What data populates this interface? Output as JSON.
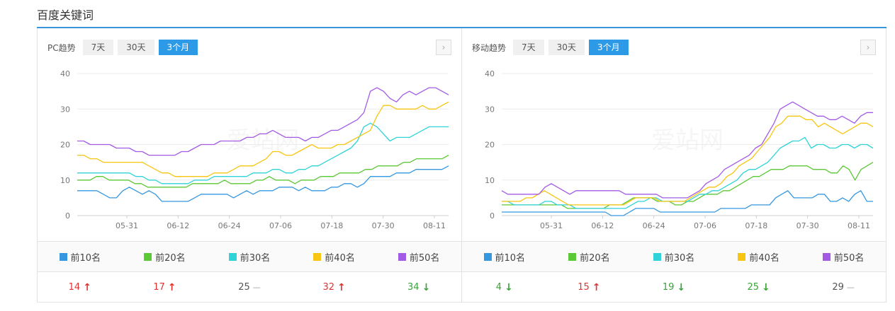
{
  "section_title": "百度关键词",
  "legend_colors": {
    "前10名": "#3597e0",
    "前20名": "#5bc836",
    "前30名": "#2fd3d8",
    "前40名": "#f8c511",
    "前50名": "#a35be6"
  },
  "panels": [
    {
      "id": "pc",
      "label": "PC趋势",
      "tabs": [
        "7天",
        "30天",
        "3个月"
      ],
      "active_tab": "3个月",
      "next_icon": "chevron-right-icon",
      "watermark": "爱站网",
      "legend": [
        "前10名",
        "前20名",
        "前30名",
        "前40名",
        "前50名"
      ],
      "deltas": [
        {
          "value": "14",
          "trend": "up",
          "symbol": "↑"
        },
        {
          "value": "17",
          "trend": "up",
          "symbol": "↑"
        },
        {
          "value": "25",
          "trend": "flat",
          "symbol": "—"
        },
        {
          "value": "32",
          "trend": "up",
          "symbol": "↑"
        },
        {
          "value": "34",
          "trend": "down",
          "symbol": "↓"
        }
      ]
    },
    {
      "id": "mobile",
      "label": "移动趋势",
      "tabs": [
        "7天",
        "30天",
        "3个月"
      ],
      "active_tab": "3个月",
      "next_icon": "chevron-right-icon",
      "watermark": "爱站网",
      "legend": [
        "前10名",
        "前20名",
        "前30名",
        "前40名",
        "前50名"
      ],
      "deltas": [
        {
          "value": "4",
          "trend": "down",
          "symbol": "↓"
        },
        {
          "value": "15",
          "trend": "up",
          "symbol": "↑"
        },
        {
          "value": "19",
          "trend": "down",
          "symbol": "↓"
        },
        {
          "value": "25",
          "trend": "down",
          "symbol": "↓"
        },
        {
          "value": "29",
          "trend": "flat",
          "symbol": "—"
        }
      ]
    }
  ],
  "chart_data": [
    {
      "type": "line",
      "x_ticks": [
        "05-31",
        "06-12",
        "06-24",
        "07-06",
        "07-18",
        "07-30",
        "08-11"
      ],
      "ylim": [
        0,
        40
      ],
      "y_ticks": [
        0,
        10,
        20,
        30,
        40
      ],
      "grid": true,
      "legend_placement": "bottom",
      "series": [
        {
          "name": "前10名",
          "color": "#3597e0",
          "values": [
            7,
            7,
            7,
            7,
            6,
            5,
            5,
            7,
            8,
            7,
            6,
            7,
            6,
            4,
            4,
            4,
            4,
            4,
            5,
            6,
            6,
            6,
            6,
            6,
            5,
            6,
            7,
            6,
            7,
            7,
            7,
            8,
            8,
            8,
            7,
            8,
            7,
            7,
            7,
            8,
            8,
            9,
            9,
            8,
            9,
            11,
            11,
            11,
            11,
            12,
            12,
            12,
            13,
            13,
            13,
            13,
            13,
            14
          ]
        },
        {
          "name": "前20名",
          "color": "#5bc836",
          "values": [
            10,
            10,
            10,
            11,
            11,
            10,
            10,
            10,
            10,
            9,
            9,
            8,
            8,
            8,
            8,
            8,
            8,
            8,
            9,
            9,
            9,
            9,
            9,
            10,
            9,
            9,
            9,
            9,
            10,
            10,
            11,
            10,
            10,
            10,
            9,
            10,
            10,
            10,
            11,
            11,
            11,
            12,
            12,
            12,
            12,
            13,
            13,
            14,
            14,
            14,
            14,
            15,
            15,
            16,
            16,
            16,
            16,
            16,
            17
          ]
        },
        {
          "name": "前30名",
          "color": "#2fd3d8",
          "values": [
            12,
            12,
            12,
            12,
            12,
            12,
            12,
            12,
            12,
            11,
            11,
            10,
            10,
            9,
            9,
            9,
            9,
            9,
            10,
            10,
            10,
            11,
            11,
            11,
            11,
            11,
            11,
            12,
            12,
            12,
            13,
            13,
            12,
            12,
            13,
            13,
            14,
            14,
            15,
            16,
            17,
            18,
            19,
            21,
            25,
            26,
            25,
            23,
            21,
            22,
            22,
            22,
            23,
            24,
            25,
            25,
            25,
            25
          ]
        },
        {
          "name": "前40名",
          "color": "#f8c511",
          "values": [
            17,
            17,
            16,
            16,
            15,
            15,
            15,
            15,
            15,
            15,
            15,
            14,
            13,
            12,
            12,
            11,
            11,
            11,
            11,
            11,
            11,
            12,
            12,
            12,
            13,
            14,
            14,
            14,
            15,
            16,
            18,
            18,
            17,
            17,
            18,
            19,
            20,
            19,
            19,
            19,
            20,
            20,
            21,
            22,
            23,
            24,
            28,
            31,
            31,
            30,
            30,
            30,
            30,
            31,
            30,
            30,
            31,
            32
          ]
        },
        {
          "name": "前50名",
          "color": "#a35be6",
          "values": [
            21,
            21,
            20,
            20,
            20,
            20,
            19,
            19,
            19,
            18,
            18,
            17,
            17,
            17,
            17,
            17,
            18,
            18,
            19,
            20,
            20,
            20,
            21,
            21,
            21,
            21,
            22,
            22,
            23,
            23,
            24,
            23,
            22,
            22,
            22,
            21,
            22,
            22,
            23,
            24,
            24,
            25,
            26,
            27,
            29,
            35,
            36,
            35,
            33,
            32,
            34,
            35,
            34,
            35,
            36,
            36,
            35,
            34
          ]
        }
      ]
    },
    {
      "type": "line",
      "x_ticks": [
        "05-31",
        "06-12",
        "06-24",
        "07-06",
        "07-18",
        "07-30",
        "08-11"
      ],
      "ylim": [
        0,
        40
      ],
      "y_ticks": [
        0,
        10,
        20,
        30,
        40
      ],
      "grid": true,
      "legend_placement": "bottom",
      "series": [
        {
          "name": "前10名",
          "color": "#3597e0",
          "values": [
            1,
            1,
            1,
            1,
            1,
            1,
            1,
            1,
            1,
            1,
            1,
            1,
            1,
            1,
            1,
            1,
            1,
            1,
            0,
            0,
            0,
            1,
            2,
            2,
            2,
            2,
            1,
            1,
            1,
            1,
            1,
            1,
            1,
            1,
            1,
            1,
            2,
            2,
            2,
            2,
            2,
            3,
            3,
            3,
            3,
            5,
            6,
            7,
            5,
            5,
            5,
            5,
            6,
            6,
            4,
            4,
            5,
            4,
            6,
            7,
            4,
            4
          ]
        },
        {
          "name": "前20名",
          "color": "#5bc836",
          "values": [
            3,
            3,
            3,
            3,
            3,
            3,
            3,
            3,
            3,
            3,
            3,
            2,
            2,
            2,
            2,
            2,
            2,
            2,
            3,
            3,
            3,
            4,
            5,
            5,
            5,
            5,
            4,
            4,
            4,
            3,
            3,
            4,
            4,
            5,
            6,
            6,
            6,
            7,
            7,
            8,
            9,
            10,
            11,
            11,
            12,
            13,
            13,
            13,
            14,
            14,
            14,
            14,
            13,
            13,
            13,
            12,
            12,
            14,
            13,
            10,
            13,
            14,
            15
          ]
        },
        {
          "name": "前30名",
          "color": "#2fd3d8",
          "values": [
            4,
            4,
            3,
            3,
            3,
            3,
            3,
            4,
            4,
            3,
            3,
            3,
            2,
            2,
            2,
            2,
            2,
            2,
            2,
            2,
            2,
            3,
            4,
            4,
            5,
            5,
            4,
            4,
            4,
            4,
            4,
            5,
            6,
            6,
            7,
            7,
            8,
            9,
            10,
            12,
            13,
            13,
            14,
            15,
            17,
            19,
            20,
            21,
            21,
            22,
            19,
            20,
            20,
            19,
            19,
            20,
            20,
            19,
            20,
            20,
            19
          ]
        },
        {
          "name": "前40名",
          "color": "#f8c511",
          "values": [
            4,
            4,
            4,
            4,
            5,
            5,
            6,
            7,
            6,
            5,
            4,
            3,
            3,
            3,
            3,
            3,
            3,
            3,
            3,
            3,
            3,
            4,
            5,
            5,
            5,
            5,
            4,
            4,
            4,
            4,
            4,
            5,
            6,
            7,
            8,
            8,
            9,
            11,
            12,
            14,
            15,
            16,
            18,
            20,
            22,
            25,
            26,
            28,
            28,
            28,
            27,
            27,
            25,
            26,
            25,
            24,
            23,
            24,
            25,
            26,
            26,
            25
          ]
        },
        {
          "name": "前50名",
          "color": "#a35be6",
          "values": [
            7,
            6,
            6,
            6,
            6,
            6,
            6,
            8,
            9,
            8,
            7,
            6,
            7,
            7,
            7,
            7,
            7,
            7,
            7,
            7,
            6,
            6,
            6,
            6,
            6,
            6,
            5,
            5,
            5,
            5,
            5,
            6,
            7,
            9,
            10,
            11,
            13,
            14,
            15,
            16,
            17,
            19,
            20,
            23,
            26,
            30,
            31,
            32,
            31,
            30,
            29,
            28,
            28,
            27,
            27,
            28,
            27,
            26,
            28,
            29,
            29
          ]
        }
      ]
    }
  ]
}
